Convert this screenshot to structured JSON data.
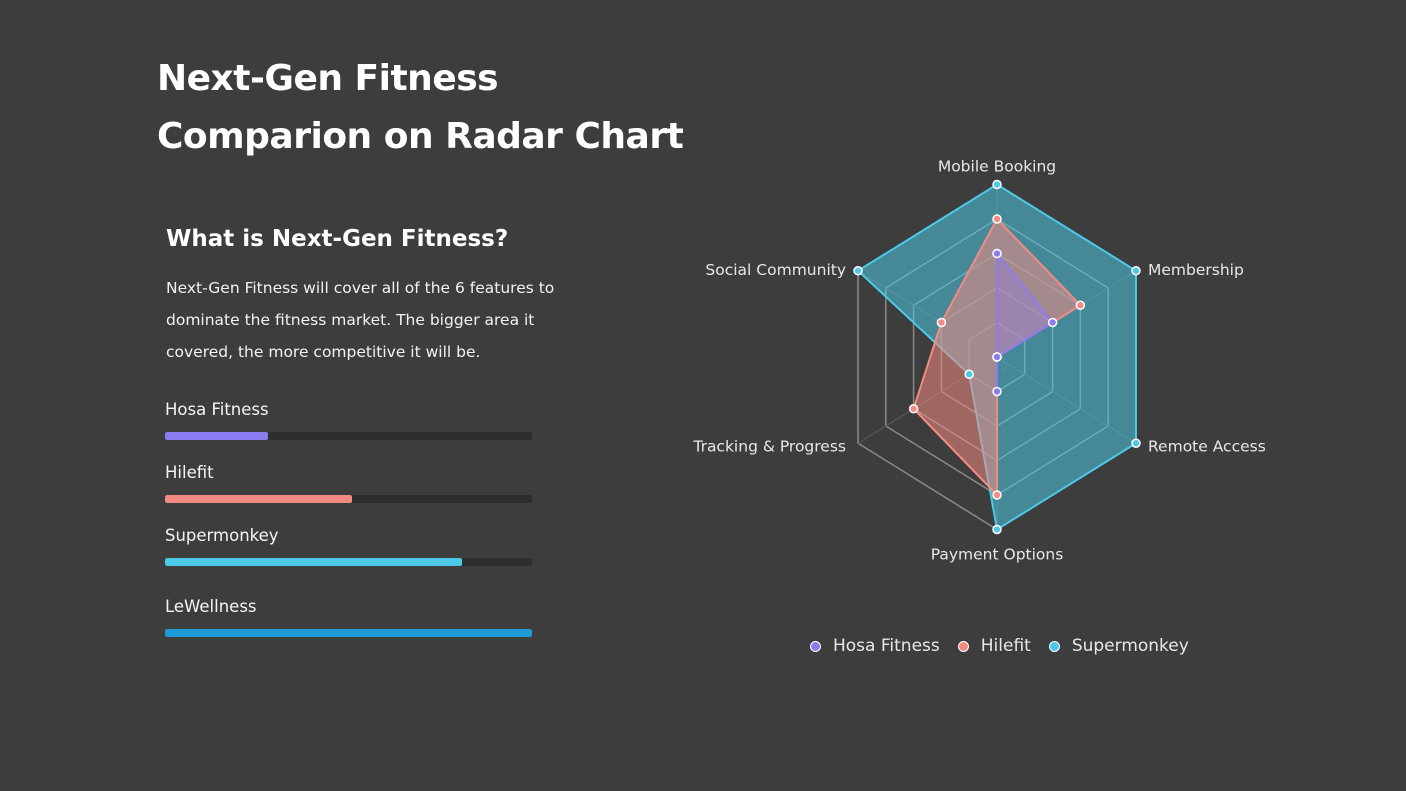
{
  "page": {
    "title": "Next-Gen Fitness Comparion on Radar Chart",
    "subtitle": "What is Next-Gen Fitness?",
    "description": "Next-Gen Fitness will cover all of the 6 features to dominate the fitness market. The bigger area it covered, the more competitive it will be."
  },
  "progress_bars": [
    {
      "label": "Hosa Fitness",
      "value": 0.28,
      "color": "#8b7cf2"
    },
    {
      "label": "Hilefit",
      "value": 0.51,
      "color": "#f28b82"
    },
    {
      "label": "Supermonkey",
      "value": 0.81,
      "color": "#4cc9e6"
    },
    {
      "label": "LeWellness",
      "value": 1.0,
      "color": "#1e9bd7"
    }
  ],
  "chart_data": {
    "type": "radar",
    "title": "",
    "axes": [
      "Mobile Booking",
      "Membership",
      "Remote Access",
      "Payment Options",
      "Tracking & Progress",
      "Social Community"
    ],
    "range": [
      0,
      1
    ],
    "grid_levels": 5,
    "center_tick_label": "0",
    "legend_position": "bottom",
    "series": [
      {
        "name": "Hosa Fitness",
        "color": "#8b7cf2",
        "values": [
          0.6,
          0.4,
          0,
          0.2,
          0,
          0
        ]
      },
      {
        "name": "Hilefit",
        "color": "#f28b82",
        "values": [
          0.8,
          0.6,
          0,
          0.8,
          0.6,
          0.4
        ]
      },
      {
        "name": "Supermonkey",
        "color": "#4cc9e6",
        "values": [
          1.0,
          1.0,
          1.0,
          1.0,
          0.2,
          1.0
        ]
      }
    ]
  }
}
